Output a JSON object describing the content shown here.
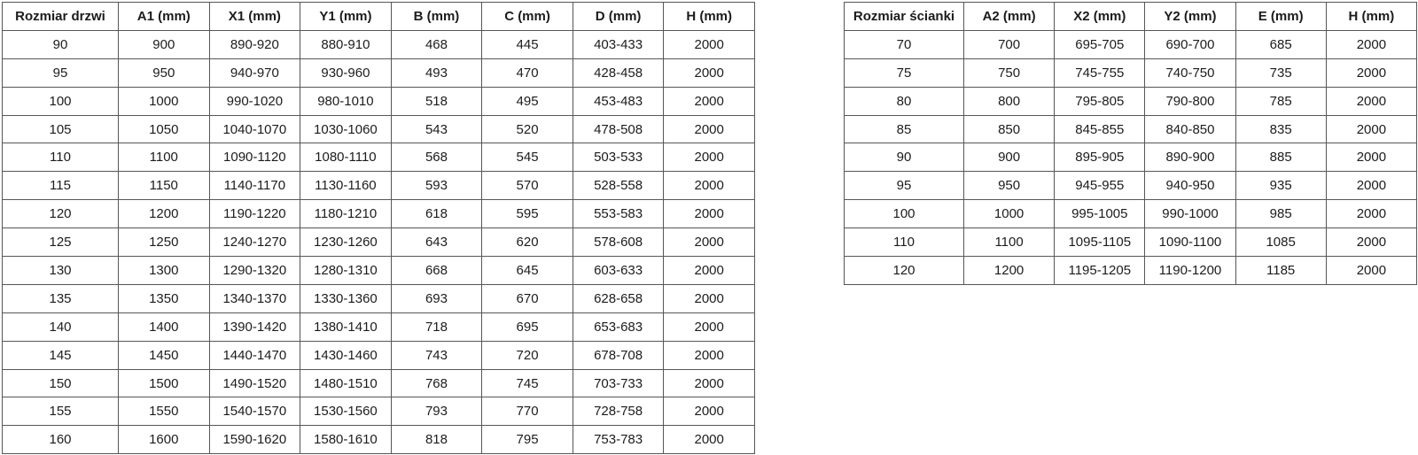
{
  "door_table": {
    "title": "Rozmiar drzwi",
    "headers": [
      "Rozmiar drzwi",
      "A1 (mm)",
      "X1 (mm)",
      "Y1 (mm)",
      "B (mm)",
      "C (mm)",
      "D (mm)",
      "H (mm)"
    ],
    "rows": [
      [
        "90",
        "900",
        "890-920",
        "880-910",
        "468",
        "445",
        "403-433",
        "2000"
      ],
      [
        "95",
        "950",
        "940-970",
        "930-960",
        "493",
        "470",
        "428-458",
        "2000"
      ],
      [
        "100",
        "1000",
        "990-1020",
        "980-1010",
        "518",
        "495",
        "453-483",
        "2000"
      ],
      [
        "105",
        "1050",
        "1040-1070",
        "1030-1060",
        "543",
        "520",
        "478-508",
        "2000"
      ],
      [
        "110",
        "1100",
        "1090-1120",
        "1080-1110",
        "568",
        "545",
        "503-533",
        "2000"
      ],
      [
        "115",
        "1150",
        "1140-1170",
        "1130-1160",
        "593",
        "570",
        "528-558",
        "2000"
      ],
      [
        "120",
        "1200",
        "1190-1220",
        "1180-1210",
        "618",
        "595",
        "553-583",
        "2000"
      ],
      [
        "125",
        "1250",
        "1240-1270",
        "1230-1260",
        "643",
        "620",
        "578-608",
        "2000"
      ],
      [
        "130",
        "1300",
        "1290-1320",
        "1280-1310",
        "668",
        "645",
        "603-633",
        "2000"
      ],
      [
        "135",
        "1350",
        "1340-1370",
        "1330-1360",
        "693",
        "670",
        "628-658",
        "2000"
      ],
      [
        "140",
        "1400",
        "1390-1420",
        "1380-1410",
        "718",
        "695",
        "653-683",
        "2000"
      ],
      [
        "145",
        "1450",
        "1440-1470",
        "1430-1460",
        "743",
        "720",
        "678-708",
        "2000"
      ],
      [
        "150",
        "1500",
        "1490-1520",
        "1480-1510",
        "768",
        "745",
        "703-733",
        "2000"
      ],
      [
        "155",
        "1550",
        "1540-1570",
        "1530-1560",
        "793",
        "770",
        "728-758",
        "2000"
      ],
      [
        "160",
        "1600",
        "1590-1620",
        "1580-1610",
        "818",
        "795",
        "753-783",
        "2000"
      ]
    ]
  },
  "wall_table": {
    "title": "Rozmiar ścianki",
    "headers": [
      "Rozmiar ścianki",
      "A2 (mm)",
      "X2 (mm)",
      "Y2 (mm)",
      "E (mm)",
      "H (mm)"
    ],
    "rows": [
      [
        "70",
        "700",
        "695-705",
        "690-700",
        "685",
        "2000"
      ],
      [
        "75",
        "750",
        "745-755",
        "740-750",
        "735",
        "2000"
      ],
      [
        "80",
        "800",
        "795-805",
        "790-800",
        "785",
        "2000"
      ],
      [
        "85",
        "850",
        "845-855",
        "840-850",
        "835",
        "2000"
      ],
      [
        "90",
        "900",
        "895-905",
        "890-900",
        "885",
        "2000"
      ],
      [
        "95",
        "950",
        "945-955",
        "940-950",
        "935",
        "2000"
      ],
      [
        "100",
        "1000",
        "995-1005",
        "990-1000",
        "985",
        "2000"
      ],
      [
        "110",
        "1100",
        "1095-1105",
        "1090-1100",
        "1085",
        "2000"
      ],
      [
        "120",
        "1200",
        "1195-1205",
        "1190-1200",
        "1185",
        "2000"
      ]
    ]
  },
  "colors": {
    "border": "#565656",
    "text": "#1c1c1c",
    "background": "#ffffff"
  }
}
